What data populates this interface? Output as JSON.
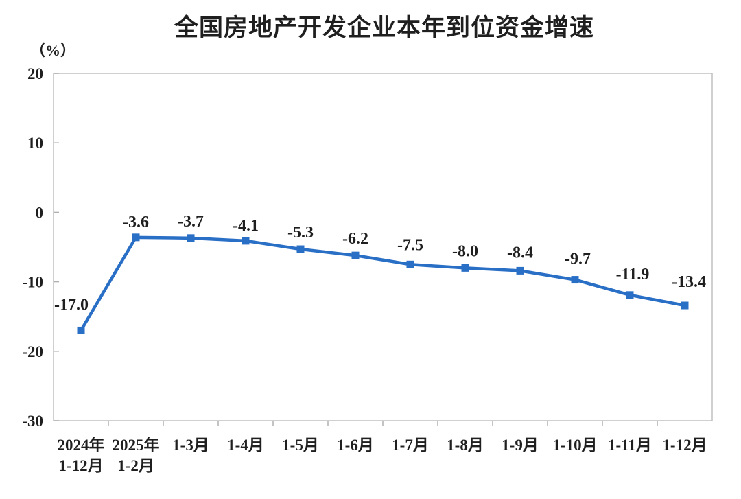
{
  "page": {
    "background": "#ffffff"
  },
  "chart_data": {
    "type": "line",
    "title": "全国房地产开发企业本年到位资金增速",
    "unit_label": "（%）",
    "categories": [
      "2024年\n1-12月",
      "2025年\n1-2月",
      "1-3月",
      "1-4月",
      "1-5月",
      "1-6月",
      "1-7月",
      "1-8月",
      "1-9月",
      "1-10月",
      "1-11月",
      "1-12月"
    ],
    "values": [
      -17.0,
      -3.6,
      -3.7,
      -4.1,
      -5.3,
      -6.2,
      -7.5,
      -8.0,
      -8.4,
      -9.7,
      -11.9,
      -13.4
    ],
    "point_labels": [
      "-17.0",
      "-3.6",
      "-3.7",
      "-4.1",
      "-5.3",
      "-6.2",
      "-7.5",
      "-8.0",
      "-8.4",
      "-9.7",
      "-11.9",
      "-13.4"
    ],
    "xlabel": "",
    "ylabel": "（%）",
    "ylim": [
      -30,
      20
    ],
    "yticks": [
      20,
      10,
      0,
      -10,
      -20,
      -30
    ],
    "grid": false,
    "legend": "none",
    "marker": "square",
    "line_color": "#2A6FC6",
    "text_color": "#1f1f1f",
    "axis_color": "#c0c0c0",
    "tick_color": "#b0b0b0"
  }
}
